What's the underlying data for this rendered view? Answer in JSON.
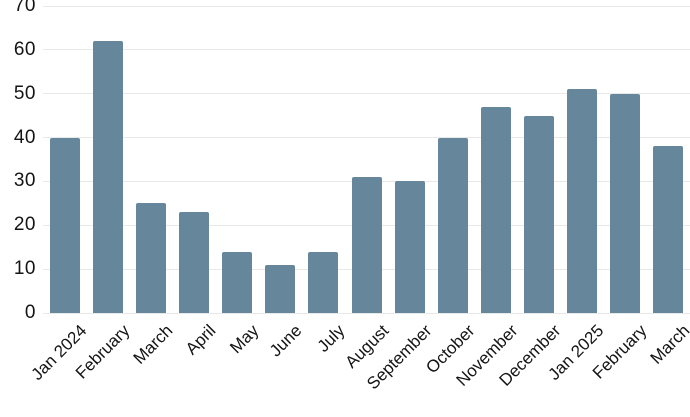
{
  "chart_data": {
    "type": "bar",
    "title": "",
    "xlabel": "",
    "ylabel": "",
    "categories": [
      "Jan 2024",
      "February",
      "March",
      "April",
      "May",
      "June",
      "July",
      "August",
      "September",
      "October",
      "November",
      "December",
      "Jan 2025",
      "February",
      "March"
    ],
    "values": [
      40,
      62,
      25,
      23,
      14,
      11,
      14,
      31,
      30,
      40,
      47,
      45,
      51,
      50,
      38
    ],
    "y_ticks": [
      0,
      10,
      20,
      30,
      40,
      50,
      60,
      70
    ],
    "ylim": [
      0,
      70
    ],
    "grid": true,
    "legend": false,
    "bar_color": "#66869B",
    "gridline_color": "#e8e8e8",
    "text_color": "#141414",
    "background_color": "#ffffff"
  }
}
